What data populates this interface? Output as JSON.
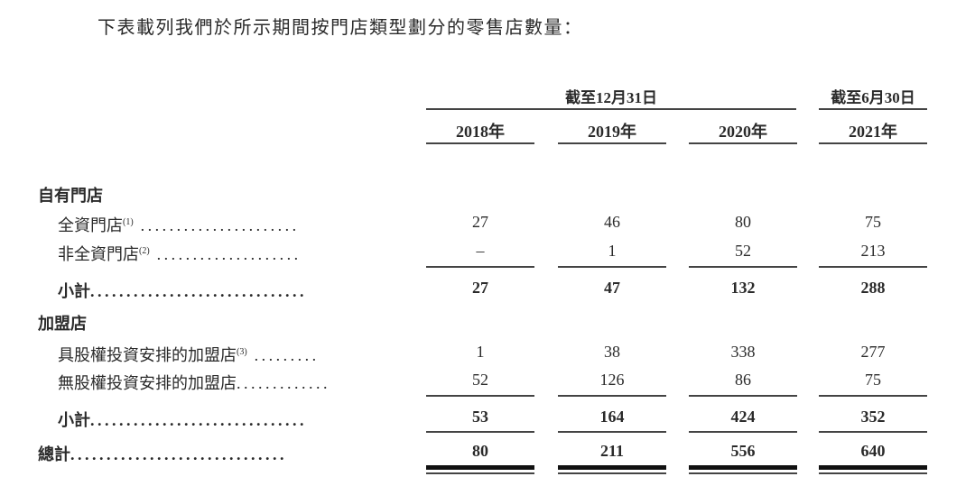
{
  "intro": "下表載列我們於所示期間按門店類型劃分的零售店數量：",
  "header": {
    "group1": "截至12月31日",
    "group2": "截至6月30日",
    "years": [
      "2018年",
      "2019年",
      "2020年",
      "2021年"
    ]
  },
  "rows": [
    {
      "label": "自有門店",
      "type": "section"
    },
    {
      "label": "全資門店",
      "note": "(1)",
      "values": [
        "27",
        "46",
        "80",
        "75"
      ]
    },
    {
      "label": "非全資門店",
      "note": "(2)",
      "values": [
        "–",
        "1",
        "52",
        "213"
      ]
    },
    {
      "label": "小計",
      "type": "subtotal",
      "values": [
        "27",
        "47",
        "132",
        "288"
      ]
    },
    {
      "label": "加盟店",
      "type": "section"
    },
    {
      "label": "具股權投資安排的加盟店",
      "note": "(3)",
      "values": [
        "1",
        "38",
        "338",
        "277"
      ]
    },
    {
      "label": "無股權投資安排的加盟店",
      "values": [
        "52",
        "126",
        "86",
        "75"
      ]
    },
    {
      "label": "小計",
      "type": "subtotal",
      "values": [
        "53",
        "164",
        "424",
        "352"
      ]
    },
    {
      "label": "總計",
      "type": "total",
      "values": [
        "80",
        "211",
        "556",
        "640"
      ]
    }
  ]
}
